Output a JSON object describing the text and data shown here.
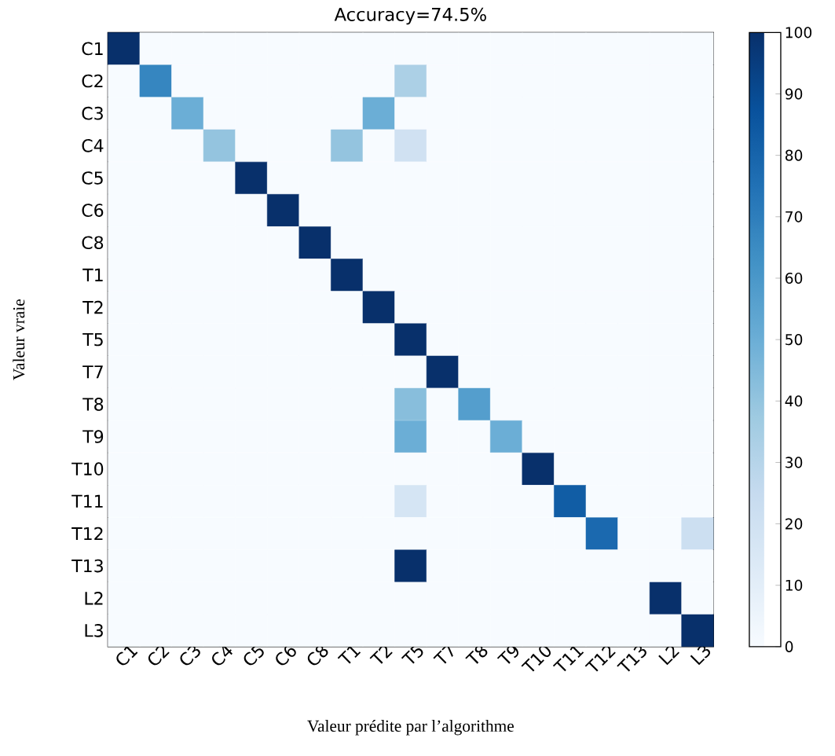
{
  "chart_data": {
    "type": "heatmap",
    "title": "Accuracy=74.5%",
    "xlabel": "Valeur prédite par l’algorithme",
    "ylabel": "Valeur vraie",
    "categories": [
      "C1",
      "C2",
      "C3",
      "C4",
      "C5",
      "C6",
      "C8",
      "T1",
      "T2",
      "T5",
      "T7",
      "T8",
      "T9",
      "T10",
      "T11",
      "T12",
      "T13",
      "L2",
      "L3"
    ],
    "y_categories": [
      "C1",
      "C2",
      "C3",
      "C4",
      "C5",
      "C6",
      "C8",
      "T1",
      "T2",
      "T5",
      "T7",
      "T8",
      "T9",
      "T10",
      "T11",
      "T12",
      "T13",
      "L2",
      "L3"
    ],
    "cells": [
      [
        100,
        0,
        0,
        0,
        0,
        0,
        0,
        0,
        0,
        0,
        0,
        0,
        0,
        0,
        0,
        0,
        0,
        0,
        0
      ],
      [
        0,
        67,
        0,
        0,
        0,
        0,
        0,
        0,
        0,
        33,
        0,
        0,
        0,
        0,
        0,
        0,
        0,
        0,
        0
      ],
      [
        0,
        0,
        50,
        0,
        0,
        0,
        0,
        0,
        50,
        0,
        0,
        0,
        0,
        0,
        0,
        0,
        0,
        0,
        0
      ],
      [
        0,
        0,
        0,
        40,
        0,
        0,
        0,
        40,
        0,
        20,
        0,
        0,
        0,
        0,
        0,
        0,
        0,
        0,
        0
      ],
      [
        0,
        0,
        0,
        0,
        100,
        0,
        0,
        0,
        0,
        0,
        0,
        0,
        0,
        0,
        0,
        0,
        0,
        0,
        0
      ],
      [
        0,
        0,
        0,
        0,
        0,
        100,
        0,
        0,
        0,
        0,
        0,
        0,
        0,
        0,
        0,
        0,
        0,
        0,
        0
      ],
      [
        0,
        0,
        0,
        0,
        0,
        0,
        100,
        0,
        0,
        0,
        0,
        0,
        0,
        0,
        0,
        0,
        0,
        0,
        0
      ],
      [
        0,
        0,
        0,
        0,
        0,
        0,
        0,
        100,
        0,
        0,
        0,
        0,
        0,
        0,
        0,
        0,
        0,
        0,
        0
      ],
      [
        0,
        0,
        0,
        0,
        0,
        0,
        0,
        0,
        100,
        0,
        0,
        0,
        0,
        0,
        0,
        0,
        0,
        0,
        0
      ],
      [
        0,
        0,
        0,
        0,
        0,
        0,
        0,
        0,
        0,
        100,
        0,
        0,
        0,
        0,
        0,
        0,
        0,
        0,
        0
      ],
      [
        0,
        0,
        0,
        0,
        0,
        0,
        0,
        0,
        0,
        0,
        100,
        0,
        0,
        0,
        0,
        0,
        0,
        0,
        0
      ],
      [
        0,
        0,
        0,
        0,
        0,
        0,
        0,
        0,
        0,
        43,
        0,
        57,
        0,
        0,
        0,
        0,
        0,
        0,
        0
      ],
      [
        0,
        0,
        0,
        0,
        0,
        0,
        0,
        0,
        0,
        50,
        0,
        0,
        50,
        0,
        0,
        0,
        0,
        0,
        0
      ],
      [
        0,
        0,
        0,
        0,
        0,
        0,
        0,
        0,
        0,
        0,
        0,
        0,
        0,
        100,
        0,
        0,
        0,
        0,
        0
      ],
      [
        0,
        0,
        0,
        0,
        0,
        0,
        0,
        0,
        0,
        17,
        0,
        0,
        0,
        0,
        83,
        0,
        0,
        0,
        0
      ],
      [
        0,
        0,
        0,
        0,
        0,
        0,
        0,
        0,
        0,
        0,
        0,
        0,
        0,
        0,
        0,
        78,
        0,
        0,
        22
      ],
      [
        0,
        0,
        0,
        0,
        0,
        0,
        0,
        0,
        0,
        100,
        0,
        0,
        0,
        0,
        0,
        0,
        0,
        0,
        0
      ],
      [
        0,
        0,
        0,
        0,
        0,
        0,
        0,
        0,
        0,
        0,
        0,
        0,
        0,
        0,
        0,
        0,
        0,
        100,
        0
      ],
      [
        0,
        0,
        0,
        0,
        0,
        0,
        0,
        0,
        0,
        0,
        0,
        0,
        0,
        0,
        0,
        0,
        0,
        0,
        100
      ]
    ],
    "clim": [
      0,
      100
    ],
    "cticks": [
      0,
      10,
      20,
      30,
      40,
      50,
      60,
      70,
      80,
      90,
      100
    ]
  }
}
